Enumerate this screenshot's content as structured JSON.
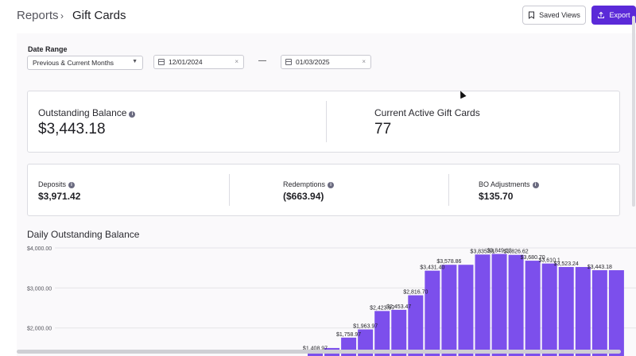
{
  "breadcrumb": {
    "root": "Reports",
    "separator": "›",
    "current": "Gift Cards"
  },
  "toolbar": {
    "saved_views_label": "Saved Views",
    "export_label": "Export",
    "accent": "#5b2ad8"
  },
  "filters": {
    "date_range_label": "Date Range",
    "preset": "Previous & Current Months",
    "start_date": "12/01/2024",
    "end_date": "01/03/2025",
    "separator": "—"
  },
  "summary": {
    "outstanding_label": "Outstanding Balance",
    "outstanding_value": "$3,443.18",
    "active_label": "Current Active Gift Cards",
    "active_value": "77"
  },
  "metrics": {
    "deposits_label": "Deposits",
    "deposits_value": "$3,971.42",
    "redemptions_label": "Redemptions",
    "redemptions_value": "($663.94)",
    "bo_label": "BO Adjustments",
    "bo_value": "$135.70"
  },
  "chart_title": "Daily Outstanding Balance",
  "chart_data": {
    "type": "bar",
    "title": "Daily Outstanding Balance",
    "color": "#7c4fec",
    "ylim": [
      1300,
      4000
    ],
    "yticks": [
      "$2,000.00",
      "$3,000.00",
      "$4,000.00"
    ],
    "ytick_values": [
      2000,
      3000,
      4000
    ],
    "values": [
      1408.97,
      1500,
      1758.97,
      1963.97,
      2423.97,
      2453.47,
      2816.7,
      3431.4,
      3578.86,
      3578.86,
      3835.51,
      3849.13,
      3826.62,
      3680.7,
      3610.1,
      3523.24,
      3523.24,
      3443.18,
      3443.18
    ],
    "labels": [
      "$1,408.97",
      "",
      "$1,758.97",
      "$1,963.97",
      "$2,423.97",
      "$2,453.47",
      "$2,816.70",
      "$3,431.40",
      "$3,578.86",
      "",
      "$3,835.51",
      "$3,849.13",
      "$3,826.62",
      "$3,680.70",
      "$3,610.1",
      "$3,523.24",
      "",
      "$3,443.18",
      ""
    ]
  }
}
